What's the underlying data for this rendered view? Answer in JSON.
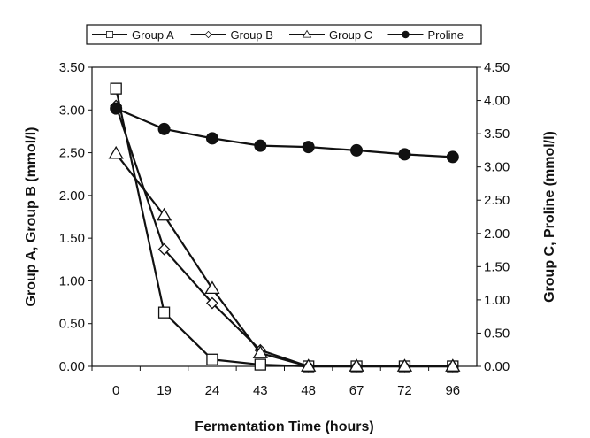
{
  "chart_data": {
    "type": "line",
    "categories": [
      "0",
      "19",
      "24",
      "43",
      "48",
      "67",
      "72",
      "96"
    ],
    "xlabel": "Fermentation Time (hours)",
    "ylabel_left": "Group A, Group B  (mmol/l)",
    "ylabel_right": "Group C, Proline (mmol/l)",
    "ylim_left": [
      0,
      3.5
    ],
    "ylim_right": [
      0,
      4.5
    ],
    "yticks_left": [
      "0.00",
      "0.50",
      "1.00",
      "1.50",
      "2.00",
      "2.50",
      "3.00",
      "3.50"
    ],
    "yticks_right": [
      "0.00",
      "0.50",
      "1.00",
      "1.50",
      "2.00",
      "2.50",
      "3.00",
      "3.50",
      "4.00",
      "4.50"
    ],
    "grid": false,
    "legend_position": "top",
    "series": [
      {
        "name": "Group A",
        "axis": "left",
        "marker": "square",
        "values": [
          3.25,
          0.63,
          0.08,
          0.02,
          0.0,
          0.0,
          0.0,
          0.0
        ]
      },
      {
        "name": "Group B",
        "axis": "left",
        "marker": "diamond",
        "values": [
          3.05,
          1.37,
          0.74,
          0.19,
          0.0,
          0.0,
          0.0,
          0.0
        ]
      },
      {
        "name": "Group C",
        "axis": "right",
        "marker": "triangle",
        "values": [
          3.2,
          2.27,
          1.17,
          0.2,
          0.0,
          0.0,
          0.0,
          0.0
        ]
      },
      {
        "name": "Proline",
        "axis": "right",
        "marker": "circle",
        "values": [
          3.88,
          3.57,
          3.43,
          3.32,
          3.3,
          3.25,
          3.19,
          3.15
        ]
      }
    ]
  }
}
